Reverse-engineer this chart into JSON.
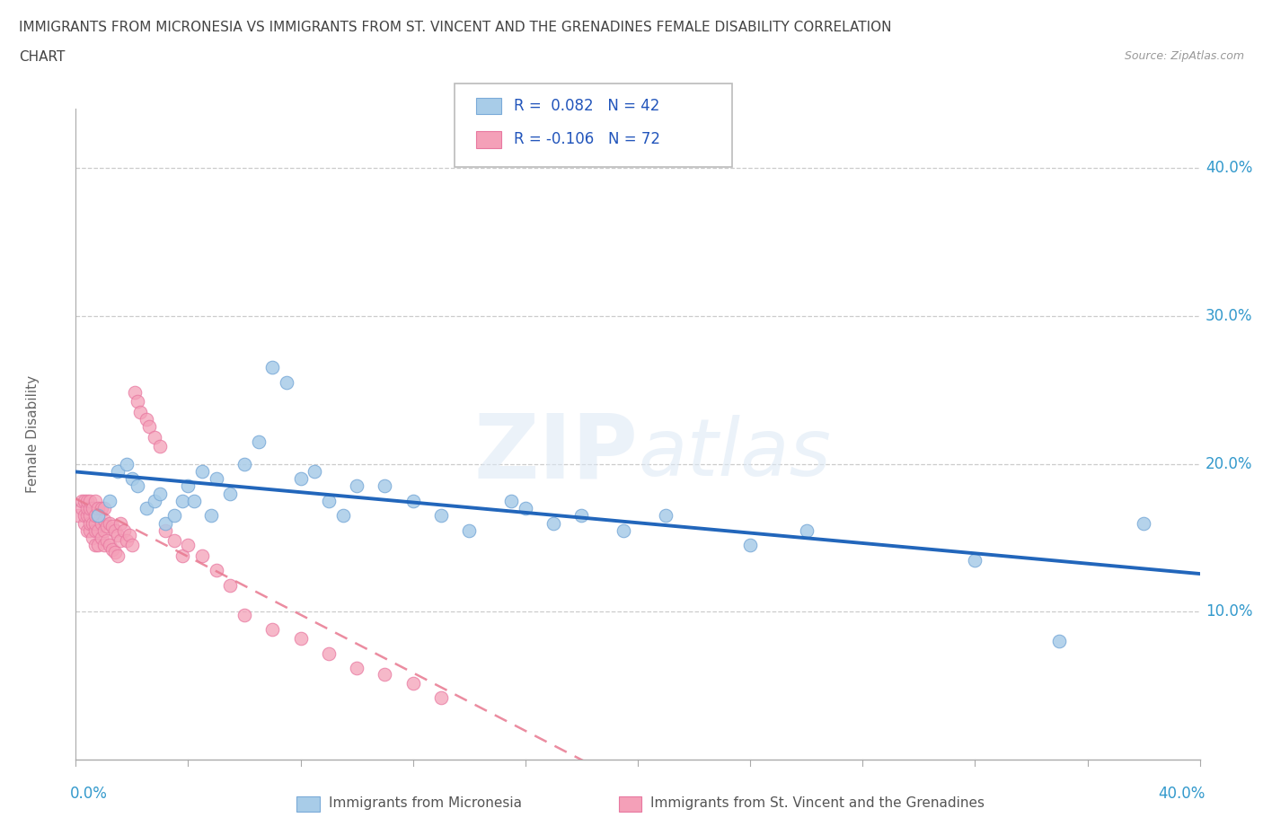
{
  "title_line1": "IMMIGRANTS FROM MICRONESIA VS IMMIGRANTS FROM ST. VINCENT AND THE GRENADINES FEMALE DISABILITY CORRELATION",
  "title_line2": "CHART",
  "source": "Source: ZipAtlas.com",
  "ylabel": "Female Disability",
  "color_blue": "#a8cce8",
  "color_pink": "#f4a0b8",
  "trend_blue": "#2266bb",
  "trend_pink": "#e87890",
  "ytick_color": "#3399cc",
  "title_color": "#444444",
  "ylabel_color": "#666666",
  "micronesia_x": [
    0.008,
    0.012,
    0.015,
    0.018,
    0.02,
    0.022,
    0.025,
    0.028,
    0.03,
    0.032,
    0.035,
    0.038,
    0.04,
    0.042,
    0.045,
    0.048,
    0.05,
    0.055,
    0.06,
    0.065,
    0.07,
    0.075,
    0.08,
    0.085,
    0.09,
    0.095,
    0.1,
    0.11,
    0.12,
    0.13,
    0.14,
    0.155,
    0.16,
    0.17,
    0.18,
    0.195,
    0.21,
    0.24,
    0.26,
    0.32,
    0.35,
    0.38
  ],
  "micronesia_y": [
    0.165,
    0.175,
    0.195,
    0.2,
    0.19,
    0.185,
    0.17,
    0.175,
    0.18,
    0.16,
    0.165,
    0.175,
    0.185,
    0.175,
    0.195,
    0.165,
    0.19,
    0.18,
    0.2,
    0.215,
    0.265,
    0.255,
    0.19,
    0.195,
    0.175,
    0.165,
    0.185,
    0.185,
    0.175,
    0.165,
    0.155,
    0.175,
    0.17,
    0.16,
    0.165,
    0.155,
    0.165,
    0.145,
    0.155,
    0.135,
    0.08,
    0.16
  ],
  "vincent_x": [
    0.001,
    0.002,
    0.002,
    0.003,
    0.003,
    0.003,
    0.004,
    0.004,
    0.004,
    0.004,
    0.005,
    0.005,
    0.005,
    0.005,
    0.005,
    0.006,
    0.006,
    0.006,
    0.007,
    0.007,
    0.007,
    0.007,
    0.007,
    0.008,
    0.008,
    0.008,
    0.008,
    0.009,
    0.009,
    0.009,
    0.01,
    0.01,
    0.01,
    0.01,
    0.011,
    0.011,
    0.012,
    0.012,
    0.013,
    0.013,
    0.014,
    0.014,
    0.015,
    0.015,
    0.016,
    0.016,
    0.017,
    0.018,
    0.019,
    0.02,
    0.021,
    0.022,
    0.023,
    0.025,
    0.026,
    0.028,
    0.03,
    0.032,
    0.035,
    0.038,
    0.04,
    0.045,
    0.05,
    0.055,
    0.06,
    0.07,
    0.08,
    0.09,
    0.1,
    0.11,
    0.12,
    0.13
  ],
  "vincent_y": [
    0.165,
    0.17,
    0.175,
    0.16,
    0.165,
    0.175,
    0.155,
    0.165,
    0.17,
    0.175,
    0.155,
    0.16,
    0.165,
    0.17,
    0.175,
    0.15,
    0.16,
    0.17,
    0.145,
    0.155,
    0.16,
    0.165,
    0.175,
    0.145,
    0.155,
    0.165,
    0.17,
    0.15,
    0.16,
    0.17,
    0.145,
    0.155,
    0.162,
    0.17,
    0.148,
    0.158,
    0.145,
    0.16,
    0.142,
    0.158,
    0.14,
    0.155,
    0.138,
    0.152,
    0.148,
    0.16,
    0.155,
    0.148,
    0.152,
    0.145,
    0.248,
    0.242,
    0.235,
    0.23,
    0.225,
    0.218,
    0.212,
    0.155,
    0.148,
    0.138,
    0.145,
    0.138,
    0.128,
    0.118,
    0.098,
    0.088,
    0.082,
    0.072,
    0.062,
    0.058,
    0.052,
    0.042
  ],
  "xlim": [
    0.0,
    0.4
  ],
  "ylim": [
    0.0,
    0.44
  ],
  "yticks": [
    0.1,
    0.2,
    0.3,
    0.4
  ],
  "ytick_labels": [
    "10.0%",
    "20.0%",
    "30.0%",
    "40.0%"
  ]
}
